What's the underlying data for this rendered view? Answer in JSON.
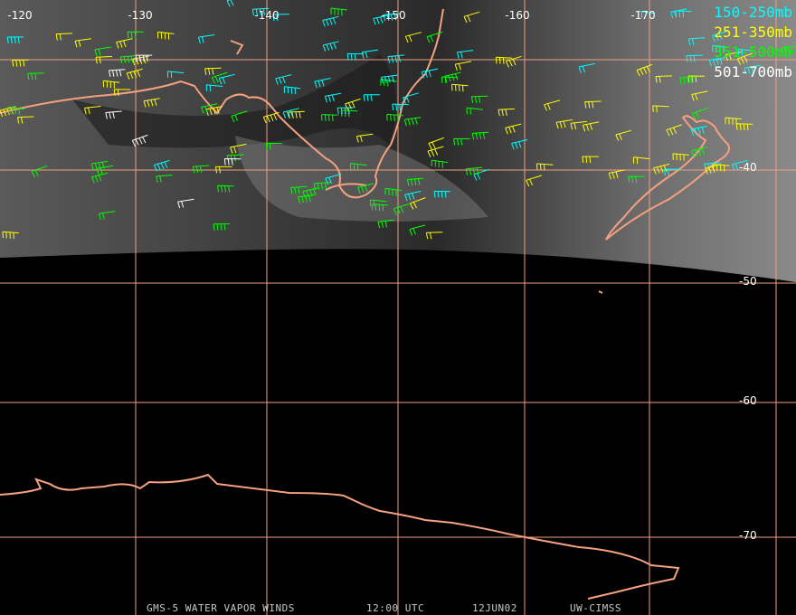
{
  "longitude_labels": [
    "-120",
    "-130",
    "-140",
    "-150",
    "-160",
    "-170"
  ],
  "latitude_labels": [
    "-40",
    "-50",
    "-60",
    "-70"
  ],
  "legend": [
    {
      "label": "150-250mb",
      "color": "#00ffff"
    },
    {
      "label": "251-350mb",
      "color": "#ffff00"
    },
    {
      "label": "351-500mb",
      "color": "#00ff00"
    },
    {
      "label": "501-700mb",
      "color": "#ffffff"
    }
  ],
  "footer": {
    "product": "GMS-5 WATER VAPOR WINDS",
    "time": "12:00 UTC",
    "date": "12JUN02",
    "source": "UW-CIMSS"
  }
}
